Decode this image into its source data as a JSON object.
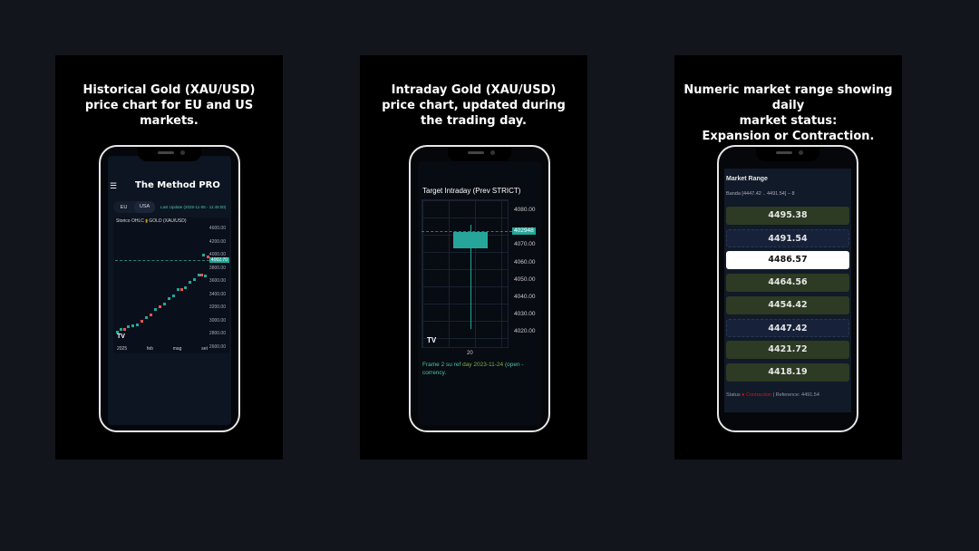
{
  "panels": [
    {
      "caption": [
        "Historical Gold (XAU/USD)",
        "price chart for EU and US markets."
      ],
      "app": {
        "title": "The Method PRO",
        "menu_icon": "hamburger-icon",
        "tabs": [
          "EU",
          "USA"
        ],
        "active_tab": "EU",
        "last_update": "Last Update (2025-11-06 - 11:45:00)",
        "chart_header": "Storico OHLC",
        "symbol": "GOLD (XAU/USD)",
        "y_ticks": [
          "4600.00",
          "4200.00",
          "4000.00",
          "3800.00",
          "3600.00",
          "3400.00",
          "3200.00",
          "3000.00",
          "2800.00",
          "2600.00"
        ],
        "price_tag": "4002.70",
        "x_ticks": [
          "2025",
          "feb",
          "mag",
          "set"
        ],
        "logo": "TV"
      }
    },
    {
      "caption": [
        "Intraday Gold (XAU/USD)",
        "price chart, updated during",
        "the trading day."
      ],
      "app": {
        "title": "Target Intraday (Prev STRICT)",
        "y_ticks": [
          "4080.00",
          "4070.00",
          "4060.00",
          "4050.00",
          "4040.00",
          "4030.00",
          "4020.00"
        ],
        "price_tag": "402948",
        "x_tick": "20",
        "logo": "TV",
        "footer_a": "Frame 2 su ref ",
        "footer_b": "day 2023-11-24",
        "footer_c": " (open - corrency."
      }
    },
    {
      "caption": [
        "Numeric market range showing daily",
        "market status:",
        "Expansion or Contraction."
      ],
      "app": {
        "title": "Market Range",
        "band": "Banda [4447.42 .. 4491.54] – 8",
        "rows": [
          {
            "v": "4495.38",
            "k": "up"
          },
          {
            "v": "4491.54",
            "k": "mid"
          },
          {
            "v": "4486.57",
            "k": "sel"
          },
          {
            "v": "4464.56",
            "k": "up"
          },
          {
            "v": "4454.42",
            "k": "up"
          },
          {
            "v": "4447.42",
            "k": "mid"
          },
          {
            "v": "4421.72",
            "k": "up"
          },
          {
            "v": "4418.19",
            "k": "up"
          }
        ],
        "status_label": "Status",
        "status_value": "Contraction",
        "status_color": "#d01818",
        "reference": "| Reference: 4491.54"
      }
    }
  ],
  "colors": {
    "accent": "#26a69a",
    "down": "#ef5350",
    "up_row": "#2d3a24",
    "mid_row": "#17223a"
  }
}
